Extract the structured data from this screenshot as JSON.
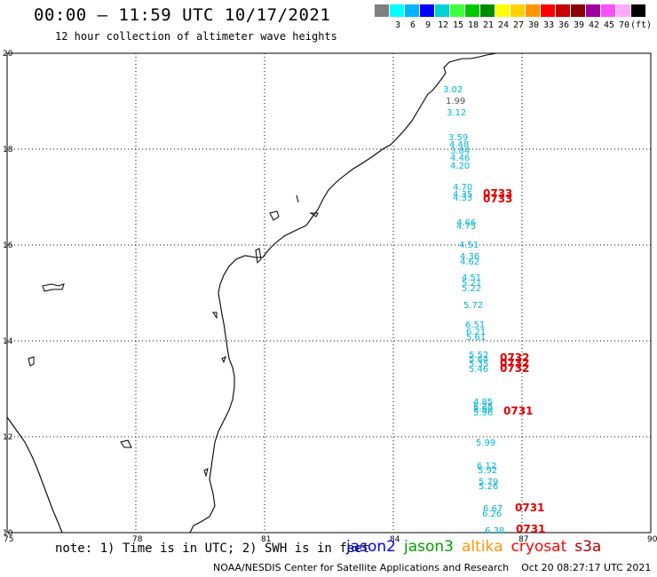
{
  "header": {
    "title": "00:00 – 11:59 UTC 10/17/2021",
    "subtitle": "12 hour collection of altimeter wave heights"
  },
  "legend": {
    "unit": "(ft)",
    "swatches": [
      {
        "color": "#808080",
        "label": ""
      },
      {
        "color": "#00ffff",
        "label": "3"
      },
      {
        "color": "#00b4ff",
        "label": "6"
      },
      {
        "color": "#0000ff",
        "label": "9"
      },
      {
        "color": "#00d2d2",
        "label": "12"
      },
      {
        "color": "#40ff40",
        "label": "15"
      },
      {
        "color": "#00c800",
        "label": "18"
      },
      {
        "color": "#008c00",
        "label": "21"
      },
      {
        "color": "#ffff00",
        "label": "24"
      },
      {
        "color": "#ffd200",
        "label": "27"
      },
      {
        "color": "#ff9600",
        "label": "30"
      },
      {
        "color": "#ff0000",
        "label": "33"
      },
      {
        "color": "#c80000",
        "label": "36"
      },
      {
        "color": "#8c0000",
        "label": "39"
      },
      {
        "color": "#a000a0",
        "label": "42"
      },
      {
        "color": "#ff50ff",
        "label": "45"
      },
      {
        "color": "#ffaaff",
        "label": "70"
      },
      {
        "color": "#000000",
        "label": ""
      }
    ]
  },
  "axes": {
    "lat_ticks": [
      "20",
      "18",
      "16",
      "14",
      "12",
      "10"
    ],
    "lon_ticks": [
      "75",
      "78",
      "81",
      "84",
      "87",
      "90"
    ]
  },
  "observations": {
    "cyan": [
      "3.02",
      "3.12",
      "3.59",
      "4.48",
      "3.84",
      "4.46",
      "4.20",
      "4.70",
      "4.35",
      "4.33",
      "4.66",
      "4.75",
      "4.51",
      "4.36",
      "4.62",
      "4.51",
      "5.21",
      "5.22",
      "5.72",
      "6.51",
      "6.21",
      "5.61",
      "5.52",
      "5.64",
      "5.35",
      "5.46",
      "4.85",
      "5.25",
      "5.90",
      "5.96",
      "5.99",
      "6.12",
      "5.92",
      "5.79",
      "5.26",
      "6.67",
      "6.26",
      "6.38"
    ],
    "gray": [
      "1.99"
    ],
    "cycle_labels": [
      "0733",
      "0733",
      "0732",
      "0732",
      "0732",
      "0731",
      "0731",
      "0731"
    ]
  },
  "footer": {
    "note": "note: 1) Time is in UTC; 2) SWH is in feet",
    "satellites": [
      {
        "name": "jason2",
        "color": "#0000ff"
      },
      {
        "name": "jason3",
        "color": "#00a000"
      },
      {
        "name": "altika",
        "color": "#ff9600"
      },
      {
        "name": "cryosat",
        "color": "#ff0000"
      },
      {
        "name": "s3a",
        "color": "#b00000"
      }
    ],
    "credit": "NOAA/NESDIS Center for Satellite Applications and Research",
    "timestamp": "Oct 20 08:27:17 UTC 2021"
  }
}
